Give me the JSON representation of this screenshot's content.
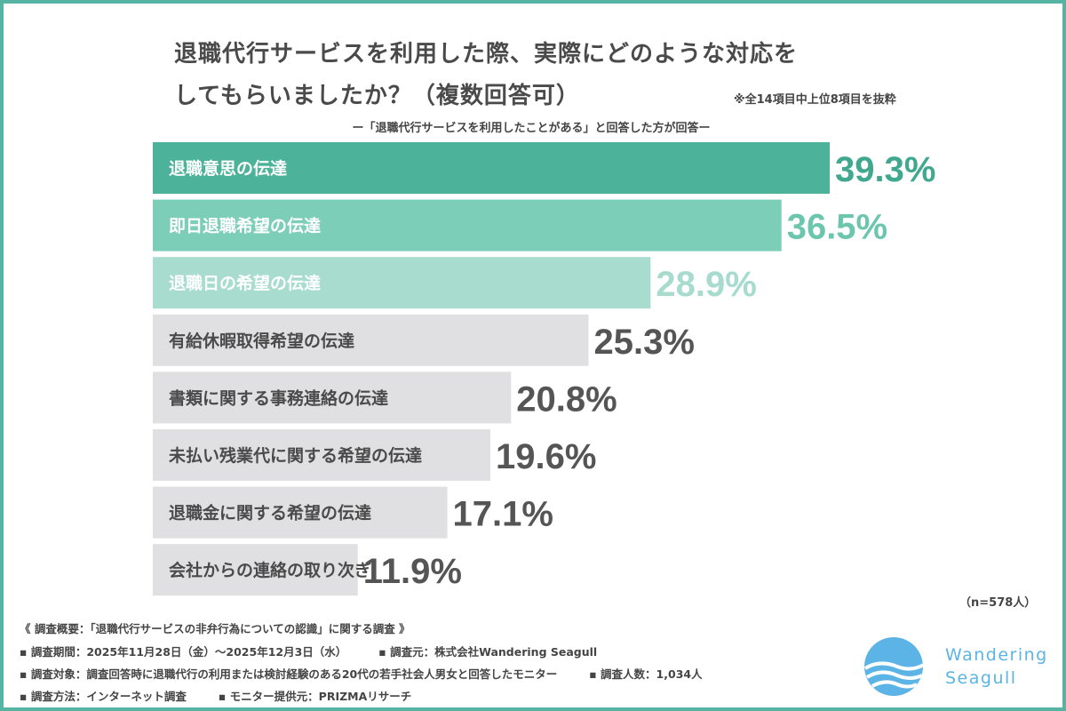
{
  "header": {
    "title_line1": "退職代行サービスを利用した際、実際にどのような対応を",
    "title_line2": "してもらいましたか？（複数回答可）",
    "note": "※全14項目中上位8項目を抜粋",
    "subtitle": "ー「退職代行サービスを利用したことがある」と回答した方が回答ー"
  },
  "chart_data": {
    "type": "bar",
    "orientation": "horizontal",
    "categories": [
      "退職意思の伝達",
      "即日退職希望の伝達",
      "退職日の希望の伝達",
      "有給休暇取得希望の伝達",
      "書類に関する事務連絡の伝達",
      "未払い残業代に関する希望の伝達",
      "退職金に関する希望の伝達",
      "会社からの連絡の取り次ぎ"
    ],
    "values": [
      39.3,
      36.5,
      28.9,
      25.3,
      20.8,
      19.6,
      17.1,
      11.9
    ],
    "value_labels": [
      "39.3%",
      "36.5%",
      "28.9%",
      "25.3%",
      "20.8%",
      "19.6%",
      "17.1%",
      "11.9%"
    ],
    "unit": "%",
    "bar_colors": [
      "#4db29a",
      "#7dceb8",
      "#a8dccf",
      "#e0e0e3",
      "#e0e0e3",
      "#e0e0e3",
      "#e0e0e3",
      "#e0e0e3"
    ],
    "label_colors": [
      "#ffffff",
      "#ffffff",
      "#ffffff",
      "#4a4a4a",
      "#4a4a4a",
      "#4a4a4a",
      "#4a4a4a",
      "#4a4a4a"
    ],
    "value_colors": [
      "#3fa88f",
      "#6cc6ae",
      "#a6dbce",
      "#555555",
      "#555555",
      "#555555",
      "#555555",
      "#555555"
    ],
    "grid": false,
    "axes": false
  },
  "sample_size": "（n=578人）",
  "footer": {
    "survey_title": "《 調査概要：「退職代行サービスの非弁行為についての認識」に関する調査 》",
    "period": "▪ 調査期間：2025年11月28日（金）～2025年12月3日（水）",
    "organizer": "▪ 調査元：株式会社Wandering Seagull",
    "target": "▪ 調査対象：調査回答時に退職代行の利用または検討経験のある20代の若手社会人男女と回答したモニター",
    "count": "▪ 調査人数：1,034人",
    "method": "▪ 調査方法：インターネット調査",
    "provider": "▪ モニター提供元：PRIZMAリサーチ"
  },
  "logo": {
    "line1": "Wandering",
    "line2": "Seagull",
    "color": "#5bb4e5"
  }
}
